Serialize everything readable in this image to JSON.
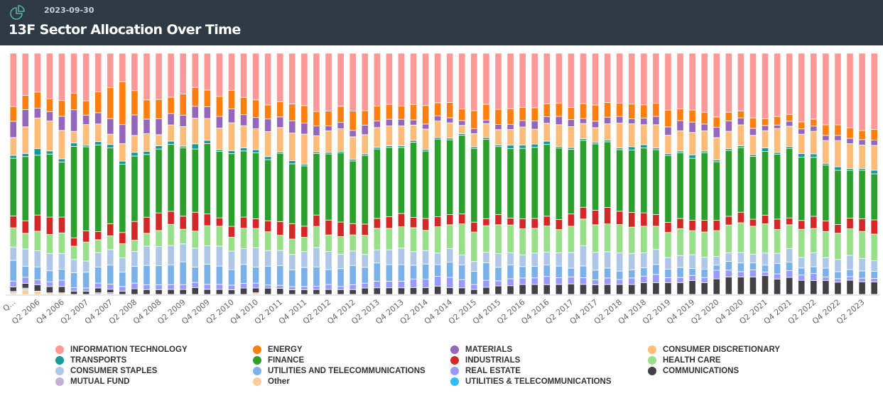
{
  "header": {
    "icon": "pie-chart-icon",
    "date": "2023-09-30",
    "title": "13F Sector Allocation Over Time"
  },
  "chart_data": {
    "type": "bar",
    "stacked": true,
    "normalized": true,
    "title": "13F Sector Allocation Over Time",
    "xlabel": "",
    "ylabel": "",
    "ylim": [
      0,
      100
    ],
    "grid": false,
    "legend_position": "bottom",
    "categories": [
      "Q4 2005",
      "Q1 2006",
      "Q2 2006",
      "Q3 2006",
      "Q4 2006",
      "Q1 2007",
      "Q2 2007",
      "Q3 2007",
      "Q4 2007",
      "Q1 2008",
      "Q2 2008",
      "Q3 2008",
      "Q4 2008",
      "Q1 2009",
      "Q2 2009",
      "Q3 2009",
      "Q4 2009",
      "Q1 2010",
      "Q2 2010",
      "Q3 2010",
      "Q4 2010",
      "Q1 2011",
      "Q2 2011",
      "Q3 2011",
      "Q4 2011",
      "Q1 2012",
      "Q2 2012",
      "Q3 2012",
      "Q4 2012",
      "Q1 2013",
      "Q2 2013",
      "Q3 2013",
      "Q4 2013",
      "Q1 2014",
      "Q2 2014",
      "Q3 2014",
      "Q4 2014",
      "Q1 2015",
      "Q2 2015",
      "Q3 2015",
      "Q4 2015",
      "Q1 2016",
      "Q2 2016",
      "Q3 2016",
      "Q4 2016",
      "Q1 2017",
      "Q2 2017",
      "Q3 2017",
      "Q4 2017",
      "Q1 2018",
      "Q2 2018",
      "Q3 2018",
      "Q4 2018",
      "Q1 2019",
      "Q2 2019",
      "Q3 2019",
      "Q4 2019",
      "Q1 2020",
      "Q2 2020",
      "Q3 2020",
      "Q4 2020",
      "Q1 2021",
      "Q2 2021",
      "Q3 2021",
      "Q4 2021",
      "Q1 2022",
      "Q2 2022",
      "Q3 2022",
      "Q4 2022",
      "Q1 2023",
      "Q2 2023",
      "Q3 2023"
    ],
    "tick_labels": [
      "Q...",
      "Q2 2006",
      "Q4 2006",
      "Q2 2007",
      "Q4 2007",
      "Q2 2008",
      "Q4 2008",
      "Q2 2009",
      "Q4 2009",
      "Q2 2010",
      "Q4 2010",
      "Q2 2011",
      "Q4 2011",
      "Q2 2012",
      "Q4 2012",
      "Q2 2013",
      "Q4 2013",
      "Q2 2014",
      "Q4 2014",
      "Q2 2015",
      "Q4 2015",
      "Q2 2016",
      "Q4 2016",
      "Q2 2017",
      "Q4 2017",
      "Q2 2018",
      "Q4 2018",
      "Q2 2019",
      "Q4 2019",
      "Q2 2020",
      "Q4 2020",
      "Q2 2021",
      "Q4 2021",
      "Q2 2022",
      "Q4 2022",
      "Q2 2023"
    ],
    "series": [
      {
        "name": "Other",
        "color": "#ffcc99",
        "values": [
          1,
          3,
          2,
          1,
          1,
          0,
          0,
          0,
          0,
          0,
          0,
          0,
          0,
          0,
          0,
          0,
          0,
          0,
          0,
          0,
          1,
          0,
          0,
          0,
          0,
          0,
          0,
          0,
          0,
          0,
          0,
          0,
          0,
          0,
          0,
          0,
          0,
          0,
          0,
          0,
          0,
          0,
          0,
          0,
          0,
          0,
          0,
          0,
          0,
          0,
          0,
          0,
          0,
          0,
          0,
          0,
          0,
          0,
          0,
          0,
          0,
          0,
          0,
          0,
          0,
          0,
          0,
          0,
          0,
          0,
          0,
          0
        ]
      },
      {
        "name": "MUTUAL FUND",
        "color": "#c5b0d5",
        "values": [
          1,
          1,
          0,
          0,
          0,
          0,
          0,
          1,
          1,
          0,
          0,
          0,
          0,
          0,
          0,
          0,
          0,
          0,
          0,
          0,
          0,
          0,
          0,
          0,
          0,
          0,
          0,
          0,
          0,
          0,
          0,
          0,
          0,
          0,
          0,
          0,
          0,
          0,
          0,
          0,
          0,
          0,
          0,
          0,
          0,
          0,
          0,
          0,
          0,
          0,
          0,
          0,
          0,
          0,
          0,
          0,
          0,
          0,
          0,
          0,
          0,
          0,
          0,
          0,
          0,
          0,
          0,
          0,
          0,
          0,
          0,
          0
        ]
      },
      {
        "name": "COMMUNICATIONS",
        "color": "#424146",
        "values": [
          3,
          3,
          4,
          4,
          4,
          2,
          2,
          3,
          2,
          2,
          3,
          3,
          3,
          3,
          3,
          4,
          3,
          3,
          3,
          4,
          3,
          4,
          4,
          3,
          3,
          3,
          3,
          3,
          3,
          4,
          4,
          4,
          4,
          4,
          4,
          5,
          4,
          4,
          3,
          4,
          5,
          5,
          6,
          6,
          6,
          6,
          6,
          6,
          6,
          6,
          6,
          6,
          7,
          7,
          7,
          7,
          8,
          7,
          9,
          10,
          10,
          10,
          11,
          9,
          10,
          8,
          8,
          8,
          7,
          8,
          7,
          7
        ]
      },
      {
        "name": "REAL ESTATE",
        "color": "#9999ff",
        "values": [
          4,
          4,
          3,
          3,
          4,
          2,
          2,
          3,
          3,
          3,
          3,
          3,
          3,
          3,
          3,
          3,
          3,
          3,
          3,
          3,
          3,
          2,
          2,
          2,
          2,
          2,
          3,
          2,
          3,
          3,
          4,
          4,
          4,
          5,
          5,
          6,
          6,
          5,
          3,
          4,
          3,
          4,
          4,
          4,
          5,
          4,
          4,
          4,
          3,
          4,
          3,
          4,
          4,
          5,
          3,
          3,
          3,
          3,
          5,
          4,
          3,
          4,
          2,
          3,
          4,
          3,
          4,
          2,
          2,
          2,
          2,
          2
        ]
      },
      {
        "name": "UTILITIES AND TELECOMMUNICATIONS",
        "color": "#7bb1ea",
        "values": [
          14,
          7,
          8,
          7,
          7,
          9,
          10,
          10,
          11,
          9,
          9,
          12,
          12,
          12,
          14,
          9,
          12,
          11,
          10,
          12,
          10,
          12,
          13,
          11,
          12,
          12,
          9,
          11,
          12,
          10,
          11,
          10,
          10,
          8,
          9,
          7,
          9,
          9,
          8,
          10,
          8,
          8,
          7,
          7,
          7,
          7,
          5,
          7,
          6,
          6,
          5,
          5,
          5,
          6,
          5,
          6,
          4,
          5,
          3,
          5,
          5,
          4,
          4,
          6,
          5,
          4,
          4,
          5,
          4,
          4,
          4,
          4
        ]
      },
      {
        "name": "CONSUMER STAPLES",
        "color": "#aec7e8",
        "values": [
          9,
          11,
          10,
          11,
          10,
          8,
          7,
          9,
          9,
          9,
          8,
          12,
          12,
          12,
          11,
          11,
          11,
          12,
          12,
          10,
          12,
          10,
          10,
          10,
          10,
          12,
          11,
          9,
          9,
          8,
          8,
          9,
          10,
          8,
          8,
          7,
          8,
          6,
          6,
          6,
          8,
          7,
          7,
          8,
          8,
          8,
          9,
          12,
          11,
          10,
          11,
          10,
          9,
          9,
          7,
          7,
          8,
          7,
          5,
          5,
          6,
          5,
          7,
          6,
          8,
          6,
          8,
          6,
          7,
          8,
          7,
          6
        ]
      },
      {
        "name": "HEALTH CARE",
        "color": "#98df8a",
        "values": [
          13,
          10,
          12,
          12,
          13,
          8,
          12,
          8,
          8,
          9,
          6,
          8,
          10,
          13,
          9,
          10,
          12,
          12,
          9,
          13,
          12,
          12,
          10,
          10,
          9,
          13,
          10,
          11,
          10,
          12,
          13,
          13,
          13,
          14,
          12,
          16,
          14,
          19,
          18,
          15,
          17,
          16,
          16,
          15,
          16,
          14,
          15,
          16,
          17,
          17,
          17,
          16,
          16,
          14,
          15,
          16,
          14,
          15,
          15,
          16,
          17,
          16,
          17,
          14,
          14,
          16,
          14,
          15,
          15,
          15,
          15,
          15
        ]
      },
      {
        "name": "INDUSTRIALS",
        "color": "#d62728",
        "values": [
          8,
          8,
          10,
          11,
          10,
          5,
          7,
          5,
          7,
          7,
          10,
          10,
          11,
          8,
          8,
          11,
          7,
          5,
          7,
          7,
          6,
          7,
          9,
          10,
          7,
          7,
          9,
          9,
          7,
          7,
          6,
          7,
          8,
          6,
          7,
          6,
          6,
          6,
          6,
          4,
          6,
          4,
          6,
          6,
          6,
          6,
          7,
          7,
          9,
          10,
          8,
          9,
          8,
          7,
          6,
          6,
          6,
          7,
          6,
          5,
          6,
          4,
          5,
          6,
          4,
          5,
          7,
          6,
          5,
          6,
          7,
          8
        ]
      },
      {
        "name": "FINANCE",
        "color": "#2ca02c",
        "values": [
          39,
          41,
          37,
          40,
          35,
          55,
          53,
          54,
          44,
          43,
          35,
          39,
          40,
          41,
          42,
          37,
          42,
          40,
          47,
          42,
          41,
          39,
          45,
          39,
          38,
          38,
          40,
          43,
          39,
          43,
          42,
          42,
          40,
          44,
          40,
          47,
          44,
          48,
          45,
          45,
          40,
          40,
          43,
          43,
          44,
          43,
          37,
          40,
          41,
          40,
          37,
          38,
          39,
          39,
          40,
          39,
          36,
          40,
          34,
          38,
          37,
          36,
          37,
          38,
          41,
          36,
          34,
          32,
          31,
          27,
          27,
          26
        ]
      },
      {
        "name": "TRANSPORTS",
        "color": "#17989b",
        "values": [
          2,
          2,
          4,
          2,
          2,
          2,
          1,
          2,
          2,
          2,
          2,
          2,
          2,
          2,
          1,
          3,
          2,
          1,
          2,
          2,
          2,
          2,
          1,
          2,
          1,
          1,
          1,
          1,
          1,
          1,
          1,
          1,
          1,
          1,
          1,
          1,
          1,
          1,
          1,
          1,
          1,
          2,
          2,
          2,
          2,
          1,
          1,
          1,
          1,
          1,
          1,
          2,
          2,
          1,
          1,
          1,
          2,
          1,
          1,
          1,
          1,
          1,
          2,
          1,
          1,
          2,
          2,
          1,
          2,
          1,
          1,
          2
        ]
      },
      {
        "name": "CONSUMER DISCRETIONARY",
        "color": "#ffbb78",
        "values": [
          12,
          17,
          19,
          19,
          18,
          7,
          13,
          11,
          6,
          11,
          9,
          11,
          7,
          10,
          12,
          15,
          13,
          13,
          18,
          14,
          13,
          16,
          16,
          18,
          19,
          10,
          13,
          14,
          14,
          12,
          12,
          12,
          12,
          9,
          12,
          10,
          9,
          5,
          8,
          8,
          9,
          9,
          11,
          9,
          11,
          13,
          12,
          9,
          9,
          10,
          15,
          14,
          12,
          14,
          11,
          12,
          13,
          12,
          13,
          10,
          12,
          11,
          10,
          14,
          12,
          11,
          13,
          13,
          15,
          14,
          13,
          14
        ]
      },
      {
        "name": "MATERIALS",
        "color": "#9467bd",
        "values": [
          11,
          11,
          6,
          6,
          9,
          13,
          6,
          7,
          9,
          12,
          11,
          9,
          10,
          7,
          7,
          7,
          7,
          7,
          9,
          7,
          7,
          8,
          7,
          8,
          7,
          6,
          3,
          4,
          4,
          6,
          4,
          4,
          4,
          3,
          3,
          3,
          3,
          3,
          3,
          2,
          3,
          3,
          4,
          5,
          4,
          5,
          4,
          3,
          4,
          4,
          4,
          3,
          4,
          5,
          5,
          6,
          6,
          4,
          6,
          6,
          4,
          4,
          3,
          2,
          3,
          3,
          3,
          3,
          3,
          3,
          3,
          3
        ]
      },
      {
        "name": "UTILITIES & TELECOMMUNICATIONS",
        "color": "#2ebdfa",
        "values": [
          0,
          0,
          0,
          0,
          0,
          0,
          0,
          0,
          0,
          0,
          0,
          0,
          0,
          0,
          0,
          0,
          0,
          0,
          0,
          0,
          0,
          0,
          0,
          0,
          0,
          0,
          0,
          0,
          0,
          0,
          0,
          0,
          0,
          0,
          0,
          0,
          0,
          0,
          0,
          0,
          0,
          0,
          0,
          0,
          0,
          0,
          0,
          0,
          0,
          0,
          0,
          0,
          0,
          0,
          0,
          0,
          0,
          0,
          0,
          0,
          0,
          0,
          0,
          0,
          0,
          0,
          0,
          0,
          0,
          0,
          0,
          0
        ]
      },
      {
        "name": "ENERGY",
        "color": "#ff7f0e",
        "values": [
          10,
          9,
          10,
          8,
          10,
          10,
          9,
          13,
          18,
          27,
          13,
          12,
          12,
          10,
          13,
          11,
          10,
          12,
          12,
          11,
          11,
          9,
          10,
          11,
          11,
          9,
          9,
          10,
          12,
          9,
          9,
          9,
          8,
          9,
          11,
          8,
          9,
          7,
          11,
          9,
          9,
          9,
          8,
          8,
          8,
          8,
          7,
          9,
          10,
          9,
          8,
          9,
          8,
          8,
          10,
          7,
          7,
          7,
          6,
          5,
          4,
          6,
          4,
          5,
          4,
          4,
          4,
          6,
          6,
          6,
          5,
          6
        ]
      },
      {
        "name": "INFORMATION TECHNOLOGY",
        "color": "#ff9896",
        "values": [
          36,
          27,
          24,
          29,
          30,
          24,
          30,
          24,
          20,
          18,
          20,
          29,
          29,
          27,
          25,
          20,
          22,
          26,
          24,
          28,
          29,
          33,
          32,
          33,
          33,
          36,
          35,
          33,
          36,
          36,
          32,
          31,
          32,
          30,
          31,
          30,
          29,
          34,
          35,
          29,
          33,
          32,
          33,
          33,
          31,
          30,
          31,
          30,
          32,
          30,
          30,
          31,
          31,
          30,
          34,
          33,
          33,
          35,
          37,
          34,
          33,
          37,
          38,
          37,
          36,
          39,
          38,
          41,
          41,
          42,
          43,
          43
        ]
      }
    ]
  },
  "legend": [
    {
      "label": "INFORMATION TECHNOLOGY",
      "color": "#ff9896"
    },
    {
      "label": "ENERGY",
      "color": "#ff7f0e"
    },
    {
      "label": "MATERIALS",
      "color": "#9467bd"
    },
    {
      "label": "CONSUMER DISCRETIONARY",
      "color": "#ffbb78"
    },
    {
      "label": "TRANSPORTS",
      "color": "#17989b"
    },
    {
      "label": "FINANCE",
      "color": "#2ca02c"
    },
    {
      "label": "INDUSTRIALS",
      "color": "#d62728"
    },
    {
      "label": "HEALTH CARE",
      "color": "#98df8a"
    },
    {
      "label": "CONSUMER STAPLES",
      "color": "#aec7e8"
    },
    {
      "label": "UTILITIES AND TELECOMMUNICATIONS",
      "color": "#7bb1ea"
    },
    {
      "label": "REAL ESTATE",
      "color": "#9999ff"
    },
    {
      "label": "COMMUNICATIONS",
      "color": "#424146"
    },
    {
      "label": "MUTUAL FUND",
      "color": "#c5b0d5"
    },
    {
      "label": "Other",
      "color": "#ffcc99"
    },
    {
      "label": "UTILITIES & TELECOMMUNICATIONS",
      "color": "#2ebdfa"
    }
  ]
}
